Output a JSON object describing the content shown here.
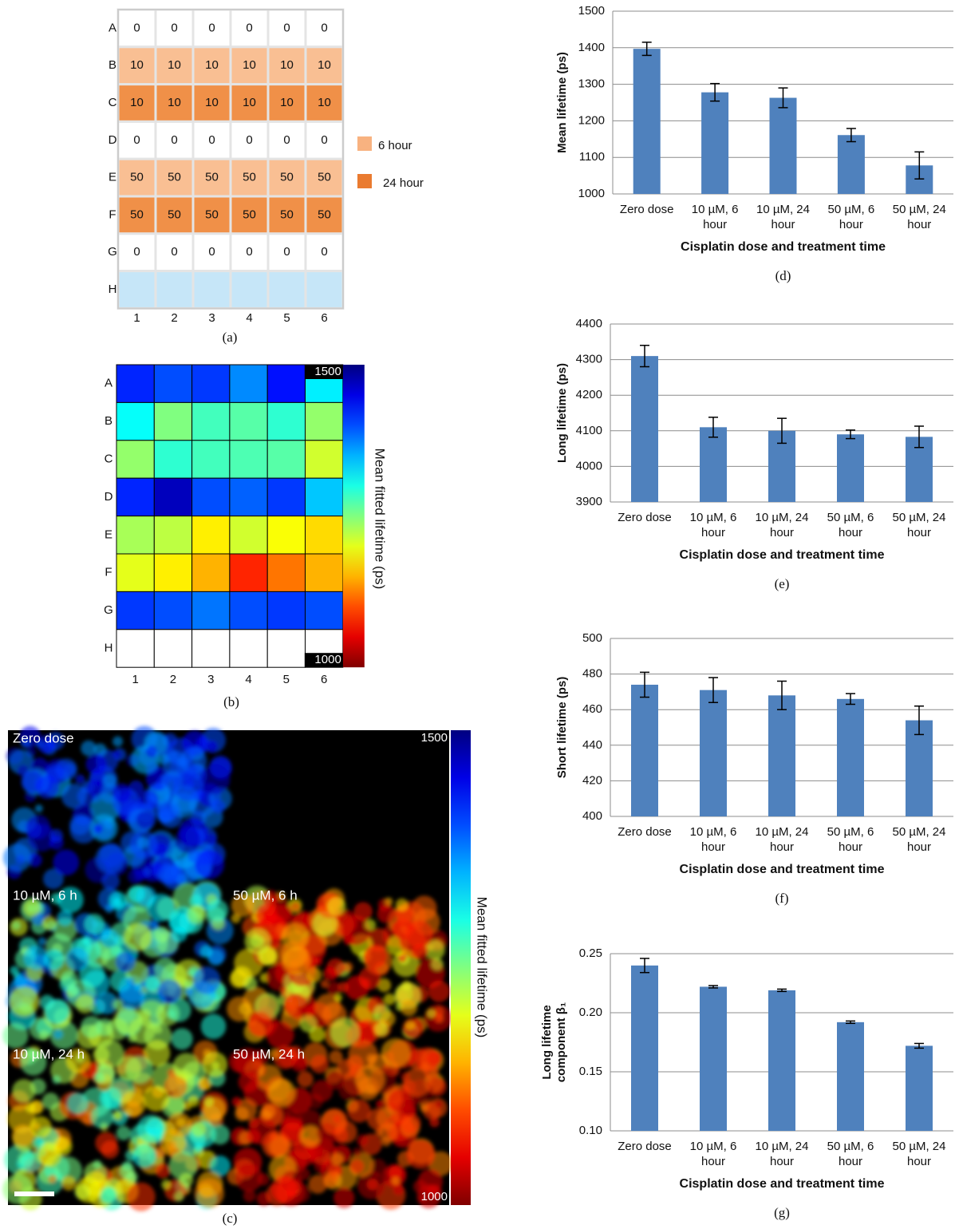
{
  "plate_map": {
    "row_labels": [
      "A",
      "B",
      "C",
      "D",
      "E",
      "F",
      "G",
      "H"
    ],
    "col_labels": [
      1,
      2,
      3,
      4,
      5,
      6
    ],
    "rows": [
      [
        0,
        0,
        0,
        0,
        0,
        0
      ],
      [
        10,
        10,
        10,
        10,
        10,
        10
      ],
      [
        10,
        10,
        10,
        10,
        10,
        10
      ],
      [
        0,
        0,
        0,
        0,
        0,
        0
      ],
      [
        50,
        50,
        50,
        50,
        50,
        50
      ],
      [
        50,
        50,
        50,
        50,
        50,
        50
      ],
      [
        0,
        0,
        0,
        0,
        0,
        0
      ],
      [
        null,
        null,
        null,
        null,
        null,
        null
      ]
    ],
    "row_colors": [
      "#ffffff",
      "#f9bf93",
      "#f09048",
      "#ffffff",
      "#f9bf93",
      "#f09048",
      "#ffffff",
      "#c6e6f8"
    ],
    "legend": [
      {
        "name": "6 hour",
        "color": "#f8b280"
      },
      {
        "name": "24 hour",
        "color": "#ea7b30"
      }
    ],
    "caption": "(a)"
  },
  "heatmap": {
    "row_labels": [
      "A",
      "B",
      "C",
      "D",
      "E",
      "F",
      "G",
      "H"
    ],
    "col_labels": [
      1,
      2,
      3,
      4,
      5,
      6
    ],
    "values": [
      [
        1420,
        1400,
        1410,
        1370,
        1430,
        1320
      ],
      [
        1310,
        1250,
        1280,
        1270,
        1290,
        1240
      ],
      [
        1240,
        1290,
        1280,
        1275,
        1270,
        1210
      ],
      [
        1420,
        1470,
        1400,
        1390,
        1410,
        1340
      ],
      [
        1230,
        1220,
        1180,
        1210,
        1190,
        1170
      ],
      [
        1200,
        1180,
        1150,
        1080,
        1120,
        1150
      ],
      [
        1410,
        1400,
        1380,
        1400,
        1410,
        1400
      ],
      [
        null,
        null,
        null,
        null,
        null,
        null
      ]
    ],
    "clim": [
      1000,
      1500
    ],
    "colorbar_ticks": [
      1500,
      1000
    ],
    "colorbar_label": "Mean fitted lifetime (ps)",
    "caption": "(b)"
  },
  "images": {
    "panels": [
      "Zero dose",
      "10 µM, 6 h",
      "50 µM, 6 h",
      "10 µM, 24 h",
      "50 µM, 24 h"
    ],
    "colorbar_ticks": [
      1500,
      1000
    ],
    "colorbar_label": "Mean fitted lifetime (ps)",
    "caption": "(c)"
  },
  "chart_data": [
    {
      "type": "bar",
      "caption": "(d)",
      "categories": [
        "Zero dose",
        "10 µM, 6 hour",
        "10 µM, 24 hour",
        "50 µM, 6 hour",
        "50 µM, 24 hour"
      ],
      "values": [
        1397,
        1278,
        1263,
        1161,
        1078
      ],
      "errors": [
        18,
        24,
        27,
        18,
        37
      ],
      "color": "#4f81bd",
      "xlabel": "Cisplatin dose and treatment time",
      "ylabel": [
        "Mean lifetime (ps)"
      ],
      "ylim": [
        1000,
        1500
      ],
      "yticks": [
        1000,
        1100,
        1200,
        1300,
        1400,
        1500
      ],
      "grid": true
    },
    {
      "type": "bar",
      "caption": "(e)",
      "categories": [
        "Zero dose",
        "10 µM, 6 hour",
        "10 µM, 24 hour",
        "50 µM, 6 hour",
        "50 µM, 24 hour"
      ],
      "values": [
        4310,
        4110,
        4100,
        4090,
        4083
      ],
      "errors": [
        30,
        28,
        35,
        12,
        30
      ],
      "color": "#4f81bd",
      "xlabel": "Cisplatin dose and treatment time",
      "ylabel": [
        "Long lifetime (ps)"
      ],
      "ylim": [
        3900,
        4400
      ],
      "yticks": [
        3900,
        4000,
        4100,
        4200,
        4300,
        4400
      ],
      "grid": true
    },
    {
      "type": "bar",
      "caption": "(f)",
      "categories": [
        "Zero dose",
        "10 µM, 6 hour",
        "10 µM, 24 hour",
        "50 µM, 6 hour",
        "50 µM, 24 hour"
      ],
      "values": [
        474,
        471,
        468,
        466,
        454
      ],
      "errors": [
        7,
        7,
        8,
        3,
        8
      ],
      "color": "#4f81bd",
      "xlabel": "Cisplatin dose and treatment time",
      "ylabel": [
        "Short lifetime (ps)"
      ],
      "ylim": [
        400,
        500
      ],
      "yticks": [
        400,
        420,
        440,
        460,
        480,
        500
      ],
      "grid": true
    },
    {
      "type": "bar",
      "caption": "(g)",
      "categories": [
        "Zero dose",
        "10 µM, 6 hour",
        "10 µM, 24 hour",
        "50 µM, 6 hour",
        "50 µM, 24 hour"
      ],
      "values": [
        0.24,
        0.222,
        0.219,
        0.192,
        0.172
      ],
      "errors": [
        0.006,
        0.001,
        0.001,
        0.001,
        0.002
      ],
      "color": "#4f81bd",
      "xlabel": "Cisplatin dose and treatment time",
      "ylabel": [
        "Long lifetime",
        "component β₁"
      ],
      "ylim": [
        0.1,
        0.25
      ],
      "yticks": [
        {
          "value": 0.1,
          "label": "0.10"
        },
        0.15,
        {
          "value": 0.2,
          "label": "0.20"
        },
        0.25
      ],
      "grid": true
    }
  ]
}
